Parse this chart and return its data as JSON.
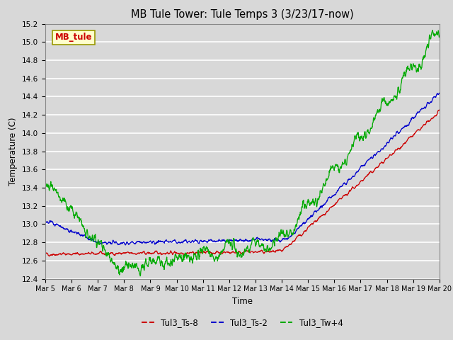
{
  "title": "MB Tule Tower: Tule Temps 3 (3/23/17-now)",
  "xlabel": "Time",
  "ylabel": "Temperature (C)",
  "ylim": [
    12.4,
    15.2
  ],
  "yticks": [
    12.4,
    12.6,
    12.8,
    13.0,
    13.2,
    13.4,
    13.6,
    13.8,
    14.0,
    14.2,
    14.4,
    14.6,
    14.8,
    15.0,
    15.2
  ],
  "xtick_labels": [
    "Mar 5",
    "Mar 6",
    "Mar 7",
    "Mar 8",
    "Mar 9",
    "Mar 10",
    "Mar 11",
    "Mar 12",
    "Mar 13",
    "Mar 14",
    "Mar 15",
    "Mar 16",
    "Mar 17",
    "Mar 18",
    "Mar 19",
    "Mar 20"
  ],
  "series_colors": [
    "#cc0000",
    "#0000cc",
    "#00aa00"
  ],
  "series_names": [
    "Tul3_Ts-8",
    "Tul3_Ts-2",
    "Tul3_Tw+4"
  ],
  "legend_label": "MB_tule",
  "legend_bg": "#ffffcc",
  "legend_fg": "#cc0000",
  "bg_color": "#d8d8d8",
  "plot_bg": "#d8d8d8",
  "n_points": 1500
}
